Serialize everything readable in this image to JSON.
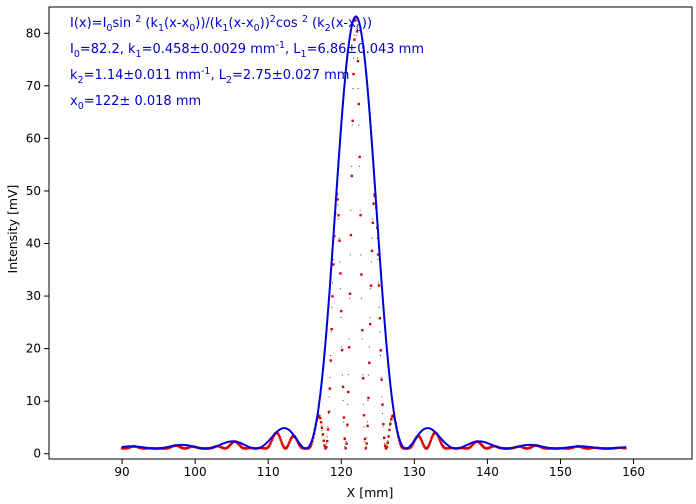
{
  "chart_data": {
    "type": "line",
    "title": "",
    "xlabel": "X [mm]",
    "ylabel": "Intensity [mV]",
    "xlim": [
      80,
      168
    ],
    "ylim": [
      -1,
      85
    ],
    "x_ticks": [
      90,
      100,
      110,
      120,
      130,
      140,
      150,
      160
    ],
    "y_ticks": [
      0,
      10,
      20,
      30,
      40,
      50,
      60,
      70,
      80
    ],
    "grid": false,
    "colors": {
      "fit": "#0000dd",
      "measured": "#dd0000",
      "reference": "#006400",
      "annotation": "#0000cc"
    },
    "fit_model": {
      "I0": 82.2,
      "k1": 0.458,
      "k2": 1.14,
      "x0": 122,
      "offset": 1.0,
      "x_range": [
        90,
        159
      ]
    },
    "series": [
      {
        "role": "fit",
        "style": "solid line",
        "x_range": [
          90,
          159
        ]
      },
      {
        "role": "measured",
        "style": "dotted markers",
        "x_range": [
          90,
          159
        ]
      },
      {
        "role": "reference",
        "style": "fine dots",
        "x_range": [
          90,
          159
        ]
      }
    ],
    "annotation": {
      "line1": [
        {
          "t": "I(x)=I"
        },
        {
          "t": "0",
          "sub": true
        },
        {
          "t": "sin "
        },
        {
          "t": "2",
          "sup": true
        },
        {
          "t": " (k"
        },
        {
          "t": "1",
          "sub": true
        },
        {
          "t": "(x-x"
        },
        {
          "t": "0",
          "sub": true
        },
        {
          "t": "))/(k"
        },
        {
          "t": "1",
          "sub": true
        },
        {
          "t": "(x-x"
        },
        {
          "t": "0",
          "sub": true
        },
        {
          "t": "))"
        },
        {
          "t": "2",
          "sup": true
        },
        {
          "t": "cos "
        },
        {
          "t": "2",
          "sup": true
        },
        {
          "t": " (k"
        },
        {
          "t": "2",
          "sub": true
        },
        {
          "t": "(x-x"
        },
        {
          "t": "0",
          "sub": true
        },
        {
          "t": "))"
        }
      ],
      "line2": [
        {
          "t": "I"
        },
        {
          "t": "0",
          "sub": true
        },
        {
          "t": "=82.2,  k"
        },
        {
          "t": "1",
          "sub": true
        },
        {
          "t": "=0.458±0.0029 mm"
        },
        {
          "t": "-1",
          "sup": true
        },
        {
          "t": ",   L"
        },
        {
          "t": "1",
          "sub": true
        },
        {
          "t": "=6.86±0.043 mm"
        }
      ],
      "line3": [
        {
          "t": "k"
        },
        {
          "t": "2",
          "sub": true
        },
        {
          "t": "=1.14±0.011 mm"
        },
        {
          "t": "-1",
          "sup": true
        },
        {
          "t": ",   L"
        },
        {
          "t": "2",
          "sub": true
        },
        {
          "t": "=2.75±0.027 mm"
        }
      ],
      "line4": [
        {
          "t": "x"
        },
        {
          "t": "0",
          "sub": true
        },
        {
          "t": "=122±   0.018 mm"
        }
      ]
    }
  }
}
